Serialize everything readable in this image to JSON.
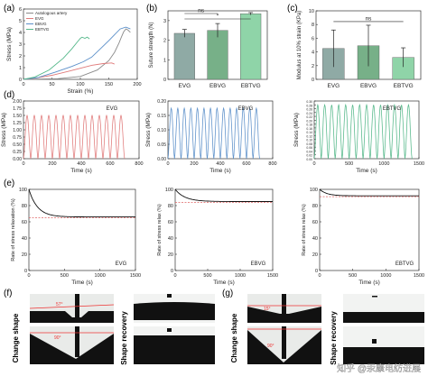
{
  "panel_labels": {
    "a": "(a)",
    "b": "(b)",
    "c": "(c)",
    "d": "(d)",
    "e": "(e)",
    "f": "(f)",
    "g": "(g)"
  },
  "colors": {
    "autologous": "#8a8a8a",
    "evg": "#e07a7a",
    "ebvg": "#5b8fc9",
    "ebtvg": "#55b88a",
    "dash": "#e06666",
    "bar_evg": "#8faaa5",
    "bar_ebvg": "#77b088",
    "bar_ebtvg": "#8fd4a8"
  },
  "chart_data": [
    {
      "id": "a",
      "type": "line",
      "xlabel": "Strain  (%)",
      "ylabel": "Stress (MPa)",
      "xlim": [
        0,
        200
      ],
      "ylim": [
        0,
        6
      ],
      "xticks": [
        0,
        50,
        100,
        150,
        200
      ],
      "yticks": [
        0,
        1,
        2,
        3,
        4,
        5,
        6
      ],
      "legend": [
        "Autologous artery",
        "EVG",
        "EBVG",
        "EBTVG"
      ],
      "series": [
        {
          "name": "Autologous artery",
          "x": [
            0,
            60,
            100,
            130,
            150,
            160,
            168,
            172,
            176,
            180,
            184,
            188
          ],
          "y": [
            0,
            0.05,
            0.25,
            0.8,
            1.6,
            2.3,
            3.1,
            3.6,
            4.05,
            4.3,
            4.2,
            4.0
          ]
        },
        {
          "name": "EVG",
          "x": [
            0,
            20,
            50,
            80,
            100,
            120,
            140,
            155,
            160
          ],
          "y": [
            0,
            0.1,
            0.35,
            0.7,
            0.95,
            1.2,
            1.35,
            1.4,
            1.3
          ]
        },
        {
          "name": "EBVG",
          "x": [
            0,
            25,
            55,
            85,
            105,
            120,
            135,
            150,
            160,
            170,
            180,
            188
          ],
          "y": [
            0,
            0.15,
            0.6,
            1.1,
            1.5,
            1.9,
            2.6,
            3.3,
            3.8,
            4.3,
            4.45,
            4.3
          ]
        },
        {
          "name": "EBTVG",
          "x": [
            0,
            20,
            45,
            70,
            85,
            95,
            100,
            103,
            108,
            112,
            116
          ],
          "y": [
            0,
            0.2,
            0.8,
            1.8,
            2.6,
            3.2,
            3.5,
            3.6,
            3.5,
            3.6,
            3.45
          ]
        }
      ]
    },
    {
      "id": "b",
      "type": "bar",
      "ylabel": "Suture strength (N)",
      "categories": [
        "EVG",
        "EBVG",
        "EBTVG"
      ],
      "values": [
        2.35,
        2.5,
        3.35
      ],
      "errors": [
        0.2,
        0.35,
        0.06
      ],
      "ylim": [
        0,
        3.5
      ],
      "yticks": [
        0,
        1,
        2,
        3
      ],
      "annotations": [
        {
          "from": "EVG",
          "to": "EBVG",
          "text": "ns"
        },
        {
          "from": "EVG",
          "to": "EBTVG",
          "text": "*"
        }
      ]
    },
    {
      "id": "c",
      "type": "bar",
      "ylabel": "Modulus at 10% strain (KPa)",
      "categories": [
        "EVG",
        "EBVG",
        "EBTVG"
      ],
      "values": [
        4.5,
        4.9,
        3.2
      ],
      "errors": [
        2.7,
        3.0,
        1.4
      ],
      "ylim": [
        0,
        10
      ],
      "yticks": [
        0,
        2,
        4,
        6,
        8,
        10
      ],
      "annotations": [
        {
          "from": "EVG",
          "to": "EBTVG",
          "text": "ns"
        }
      ]
    },
    {
      "id": "d1",
      "type": "line",
      "title": "EVG",
      "xlabel": "Time (s)",
      "ylabel": "Stress (MPa)",
      "xlim": [
        0,
        800
      ],
      "ylim": [
        0,
        2.0
      ],
      "xticks": [
        0,
        200,
        400,
        600,
        800
      ],
      "yticks": [
        0,
        0.25,
        0.5,
        0.75,
        1.0,
        1.25,
        1.5,
        1.75,
        2.0
      ],
      "ytick_labels": [
        "0.00",
        "0.25",
        "0.50",
        "0.75",
        "1.00",
        "1.25",
        "1.50",
        "1.75",
        "2.00"
      ],
      "cycles": 14,
      "x_end": 700,
      "peak": 1.5,
      "series_color": "evg"
    },
    {
      "id": "d2",
      "type": "line",
      "title": "EBVG",
      "xlabel": "Time (s)",
      "ylabel": "Stress (MPa)",
      "xlim": [
        0,
        800
      ],
      "ylim": [
        0,
        0.2
      ],
      "xticks": [
        0,
        200,
        400,
        600,
        800
      ],
      "yticks": [
        0,
        0.05,
        0.1,
        0.15,
        0.2
      ],
      "ytick_labels": [
        "0.00",
        "0.05",
        "0.10",
        "0.15",
        "0.20"
      ],
      "cycles": 14,
      "x_end": 700,
      "peak": 0.175,
      "series_color": "ebvg"
    },
    {
      "id": "d3",
      "type": "line",
      "title": "EBTVG",
      "xlabel": "Time (s)",
      "ylabel": "Stress (MPa)",
      "xlim": [
        0,
        1500
      ],
      "ylim": [
        0,
        0.3
      ],
      "xticks": [
        0,
        500,
        1000,
        1500
      ],
      "yticks": [
        0,
        0.02,
        0.04,
        0.06,
        0.08,
        0.1,
        0.12,
        0.14,
        0.16,
        0.18,
        0.2,
        0.22,
        0.24,
        0.26,
        0.28,
        0.3
      ],
      "ytick_labels": [
        "0.00",
        "0.02",
        "0.04",
        "0.06",
        "0.08",
        "0.10",
        "0.12",
        "0.14",
        "0.16",
        "0.18",
        "0.20",
        "0.22",
        "0.24",
        "0.26",
        "0.28",
        "0.30"
      ],
      "cycles": 14,
      "x_end": 1400,
      "peak": 0.28,
      "series_color": "ebtvg"
    },
    {
      "id": "e1",
      "type": "line",
      "title": "EVG",
      "xlabel": "Time (s)",
      "ylabel": "Rate of stress relaxation (%)",
      "xlim": [
        0,
        1500
      ],
      "ylim": [
        0,
        100
      ],
      "xticks": [
        0,
        500,
        1000,
        1500
      ],
      "yticks": [
        0,
        20,
        40,
        60,
        80,
        100
      ],
      "start": 100,
      "end": 66,
      "decay": 120,
      "dash": 65
    },
    {
      "id": "e2",
      "type": "line",
      "title": "EBVG",
      "xlabel": "Time (s)",
      "ylabel": "Rate of stress relax (%)",
      "xlim": [
        0,
        1500
      ],
      "ylim": [
        0,
        100
      ],
      "xticks": [
        0,
        500,
        1000,
        1500
      ],
      "yticks": [
        0,
        20,
        40,
        60,
        80,
        100
      ],
      "start": 100,
      "end": 85,
      "decay": 150,
      "dash": 84
    },
    {
      "id": "e3",
      "type": "line",
      "title": "EBTVG",
      "xlabel": "Time (s)",
      "ylabel": "Rate of stress relax (%)",
      "xlim": [
        0,
        1500
      ],
      "ylim": [
        0,
        100
      ],
      "xticks": [
        0,
        500,
        1000,
        1500
      ],
      "yticks": [
        0,
        20,
        40,
        60,
        80,
        100
      ],
      "start": 100,
      "end": 92,
      "decay": 110,
      "dash": 91
    }
  ],
  "photos": {
    "f_change": "Change shape",
    "f_recovery": "Shape recovery",
    "g_change": "Change shape",
    "g_recovery": "Shape recovery",
    "f_angle1": "57°",
    "f_angle2": "90°",
    "g_angle1": "15°",
    "g_angle2": "90°"
  },
  "watermark": "知乎 @汞康电纺进展"
}
